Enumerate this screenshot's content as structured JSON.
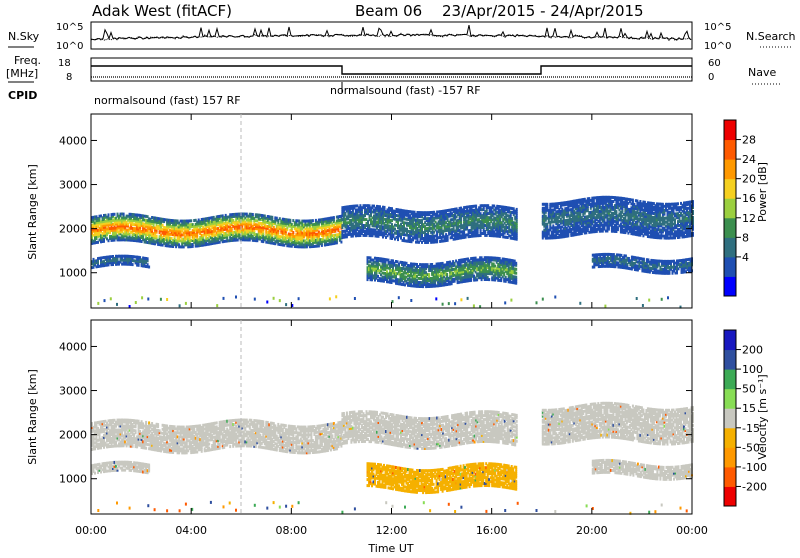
{
  "header": {
    "station": "Adak West (fitACF)",
    "beam": "Beam 06",
    "dates": "23/Apr/2015 - 24/Apr/2015"
  },
  "panels": {
    "nsky_label": "N.Sky",
    "nsearch_label": "N.Search",
    "nsky_ticks": [
      "10^5",
      "10^0"
    ],
    "freq_label_1": "Freq.",
    "freq_label_2": "[MHz]",
    "freq_ticks": [
      "18",
      "8"
    ],
    "nave_label": "Nave",
    "nave_ticks": [
      "60",
      "0"
    ],
    "cpid_label": "CPID",
    "cpid_segments": [
      {
        "text": "normalsound (fast) 157 RF",
        "start_hour": 0,
        "end_hour": 10
      },
      {
        "text": "normalsound (fast) -157 RF",
        "start_hour": 10,
        "end_hour": 18
      }
    ]
  },
  "colors": {
    "power": [
      "#0000ff",
      "#1f4fb2",
      "#2f6f7f",
      "#3c8f4f",
      "#9bcf3f",
      "#f5d020",
      "#ff9900",
      "#ff5a00",
      "#ee0000"
    ],
    "velocity": [
      "#ee0000",
      "#ff5a00",
      "#ff9900",
      "#f5b000",
      "#c8c8c0",
      "#88dd55",
      "#3caa55",
      "#2f4f9f",
      "#1818c0"
    ]
  },
  "chart_data": [
    {
      "type": "heatmap",
      "name": "power",
      "xlabel": "",
      "ylabel": "Slant Range [km]",
      "colorbar_label": "Power [dB]",
      "colorbar_ticks": [
        "28",
        "24",
        "20",
        "16",
        "12",
        "8",
        "4"
      ],
      "x_unit": "hour UT",
      "xlim": [
        0,
        24
      ],
      "ylim": [
        200,
        4600
      ],
      "yticks": [
        "4000",
        "3000",
        "2000",
        "1000"
      ],
      "bands": [
        {
          "x_start": 0,
          "x_end": 10,
          "range_start": 1700,
          "range_end": 2300,
          "peak_db": 26
        },
        {
          "x_start": 0,
          "x_end": 2.3,
          "range_start": 1150,
          "range_end": 1350,
          "peak_db": 8
        },
        {
          "x_start": 10,
          "x_end": 17,
          "range_start": 1800,
          "range_end": 2500,
          "peak_db": 10
        },
        {
          "x_start": 11,
          "x_end": 17,
          "range_start": 800,
          "range_end": 1300,
          "peak_db": 14
        },
        {
          "x_start": 18,
          "x_end": 24,
          "range_start": 1900,
          "range_end": 2700,
          "peak_db": 8
        },
        {
          "x_start": 20,
          "x_end": 24,
          "range_start": 1100,
          "range_end": 1400,
          "peak_db": 8
        }
      ]
    },
    {
      "type": "heatmap",
      "name": "velocity",
      "xlabel": "Time UT",
      "ylabel": "Slant Range [km]",
      "colorbar_label": "Velocity [m s⁻¹]",
      "colorbar_ticks": [
        "200",
        "100",
        "50",
        "15",
        "-15",
        "-50",
        "-100",
        "-200"
      ],
      "x_unit": "hour UT",
      "xlim": [
        0,
        24
      ],
      "ylim": [
        200,
        4600
      ],
      "yticks": [
        "4000",
        "3000",
        "2000",
        "1000"
      ],
      "xticks": [
        "00:00",
        "04:00",
        "08:00",
        "12:00",
        "16:00",
        "20:00",
        "00:00"
      ],
      "bands": [
        {
          "x_start": 0,
          "x_end": 10,
          "range_start": 1700,
          "range_end": 2300,
          "velocity": 0
        },
        {
          "x_start": 0,
          "x_end": 2.3,
          "range_start": 1150,
          "range_end": 1350,
          "velocity": 0
        },
        {
          "x_start": 10,
          "x_end": 17,
          "range_start": 1800,
          "range_end": 2500,
          "velocity": 0
        },
        {
          "x_start": 11,
          "x_end": 17,
          "range_start": 800,
          "range_end": 1300,
          "velocity": -40
        },
        {
          "x_start": 18,
          "x_end": 24,
          "range_start": 1900,
          "range_end": 2700,
          "velocity": 0
        },
        {
          "x_start": 20,
          "x_end": 24,
          "range_start": 1100,
          "range_end": 1400,
          "velocity": 0
        }
      ]
    }
  ]
}
